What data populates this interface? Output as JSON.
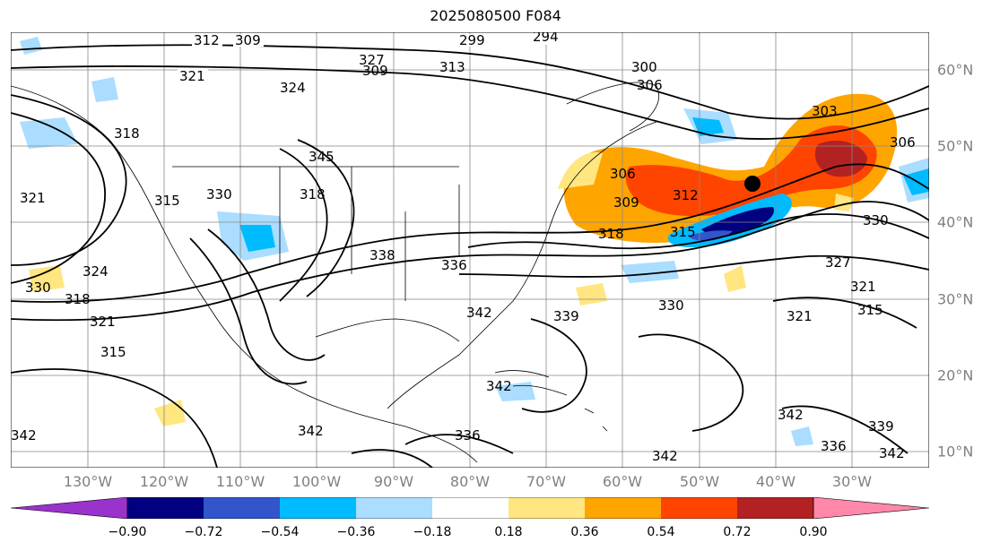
{
  "title": "2025080500 F084",
  "longitude_labels": [
    "130°W",
    "120°W",
    "110°W",
    "100°W",
    "90°W",
    "80°W",
    "70°W",
    "60°W",
    "50°W",
    "40°W",
    "30°W"
  ],
  "latitude_labels": [
    "60°N",
    "50°N",
    "40°N",
    "30°N",
    "20°N",
    "10°N"
  ],
  "colorbar": {
    "ticks": [
      "−0.90",
      "−0.72",
      "−0.54",
      "−0.36",
      "−0.18",
      "0.18",
      "0.36",
      "0.54",
      "0.72",
      "0.90"
    ],
    "colors": [
      "#9933cc",
      "#000080",
      "#3355cc",
      "#00bbff",
      "#aaddff",
      "#ffffff",
      "#ffe680",
      "#ffa500",
      "#ff4400",
      "#b22222",
      "#ff88aa"
    ]
  },
  "contour_labels": [
    "312",
    "309",
    "299",
    "294",
    "321",
    "324",
    "309",
    "313",
    "300",
    "306",
    "318",
    "303",
    "306",
    "321",
    "315",
    "330",
    "345",
    "318",
    "327",
    "306",
    "309",
    "312",
    "318",
    "315",
    "330",
    "324",
    "318",
    "321",
    "315",
    "330",
    "338",
    "336",
    "342",
    "339",
    "330",
    "327",
    "321",
    "315",
    "321",
    "342",
    "342",
    "336",
    "339",
    "342",
    "342",
    "336",
    "342",
    "342"
  ],
  "marker": "black-dot"
}
